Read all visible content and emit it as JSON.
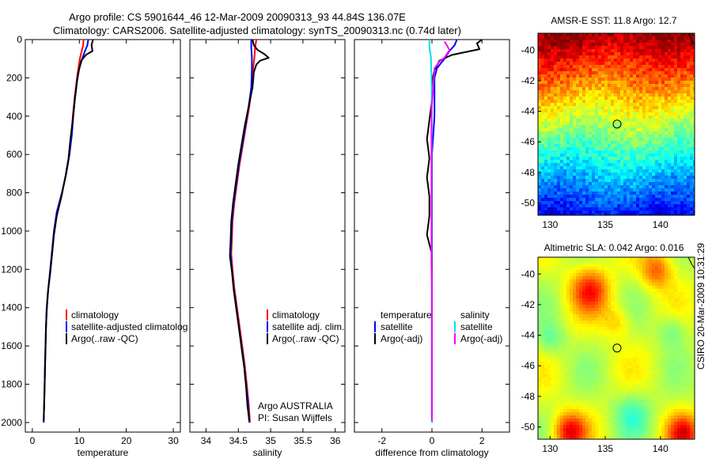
{
  "header": {
    "line1": "Argo profile: CS 5901644_46 12-Mar-2009 20090313_93 44.84S 136.07E",
    "line2": "Climatology: CARS2006. Satellite-adjusted climatology: synTS_20090313.nc (0.74d later)"
  },
  "side_label": "CSIRO 20-Mar-2009 10:31:29",
  "colors": {
    "climatology": "#ff0000",
    "satellite": "#0000ff",
    "argo": "#000000",
    "salinity_satellite": "#00e0e0",
    "salinity_argo": "#ff00ff"
  },
  "chart_data": [
    {
      "id": "temperature",
      "type": "line",
      "xlabel": "temperature",
      "xlim": [
        -1.5,
        31.5
      ],
      "xticks": [
        0,
        10,
        20,
        30
      ],
      "ylim": [
        2050,
        0
      ],
      "yticks": [
        0,
        200,
        400,
        600,
        800,
        1000,
        1200,
        1400,
        1600,
        1800,
        2000
      ],
      "ylabel": "",
      "legend": {
        "position": "lower-middle",
        "entries": [
          "climatology",
          "satellite-adjusted climatolog",
          "Argo(..raw -QC)"
        ]
      },
      "series": [
        {
          "name": "climatology",
          "color_key": "climatology",
          "points": [
            [
              10.9,
              0
            ],
            [
              10.8,
              30
            ],
            [
              10.5,
              60
            ],
            [
              10.1,
              100
            ],
            [
              9.8,
              150
            ],
            [
              9.5,
              200
            ],
            [
              9.0,
              300
            ],
            [
              8.6,
              400
            ],
            [
              8.3,
              500
            ],
            [
              7.9,
              600
            ],
            [
              7.2,
              700
            ],
            [
              6.3,
              800
            ],
            [
              5.2,
              900
            ],
            [
              4.6,
              1000
            ],
            [
              4.2,
              1100
            ],
            [
              3.8,
              1200
            ],
            [
              3.4,
              1300
            ],
            [
              3.1,
              1400
            ],
            [
              2.9,
              1500
            ],
            [
              2.8,
              1600
            ],
            [
              2.7,
              1700
            ],
            [
              2.6,
              1800
            ],
            [
              2.5,
              1900
            ],
            [
              2.4,
              2000
            ]
          ]
        },
        {
          "name": "satellite-adjusted climatology",
          "color_key": "satellite",
          "points": [
            [
              11.9,
              0
            ],
            [
              11.7,
              30
            ],
            [
              11.2,
              60
            ],
            [
              10.6,
              100
            ],
            [
              10.0,
              150
            ],
            [
              9.6,
              200
            ],
            [
              9.1,
              300
            ],
            [
              8.7,
              400
            ],
            [
              8.4,
              500
            ],
            [
              7.9,
              600
            ],
            [
              7.2,
              700
            ],
            [
              6.3,
              800
            ],
            [
              5.2,
              900
            ],
            [
              4.6,
              1000
            ],
            [
              4.2,
              1100
            ],
            [
              3.8,
              1200
            ],
            [
              3.4,
              1300
            ],
            [
              3.1,
              1400
            ],
            [
              2.9,
              1500
            ],
            [
              2.8,
              1600
            ],
            [
              2.7,
              1700
            ],
            [
              2.6,
              1800
            ],
            [
              2.5,
              1900
            ],
            [
              2.4,
              2000
            ]
          ]
        },
        {
          "name": "Argo(..raw -QC)",
          "color_key": "argo",
          "points": [
            [
              12.9,
              0
            ],
            [
              12.6,
              30
            ],
            [
              12.8,
              60
            ],
            [
              11.4,
              80
            ],
            [
              10.4,
              110
            ],
            [
              9.9,
              160
            ],
            [
              9.5,
              220
            ],
            [
              9.0,
              320
            ],
            [
              8.6,
              420
            ],
            [
              8.1,
              520
            ],
            [
              7.7,
              620
            ],
            [
              7.0,
              720
            ],
            [
              6.2,
              820
            ],
            [
              5.2,
              920
            ],
            [
              4.6,
              1020
            ],
            [
              4.2,
              1120
            ],
            [
              3.8,
              1220
            ],
            [
              3.3,
              1320
            ],
            [
              3.0,
              1420
            ],
            [
              2.9,
              1520
            ],
            [
              2.8,
              1620
            ],
            [
              2.7,
              1720
            ],
            [
              2.6,
              1820
            ],
            [
              2.5,
              1920
            ],
            [
              2.4,
              1990
            ]
          ]
        }
      ]
    },
    {
      "id": "salinity",
      "type": "line",
      "xlabel": "salinity",
      "xlim": [
        33.75,
        36.15
      ],
      "xticks": [
        34,
        34.5,
        35,
        35.5,
        36
      ],
      "ylim": [
        2050,
        0
      ],
      "legend": {
        "position": "lower-middle",
        "entries": [
          "climatology",
          "satellite adj. clim.",
          "Argo(..raw -QC)"
        ]
      },
      "annotation": {
        "line1": "Argo AUSTRALIA",
        "line2": "PI: Susan Wijffels"
      },
      "series": [
        {
          "name": "climatology",
          "color_key": "climatology",
          "points": [
            [
              34.78,
              0
            ],
            [
              34.76,
              40
            ],
            [
              34.75,
              90
            ],
            [
              34.73,
              150
            ],
            [
              34.71,
              250
            ],
            [
              34.67,
              350
            ],
            [
              34.62,
              450
            ],
            [
              34.57,
              550
            ],
            [
              34.52,
              650
            ],
            [
              34.48,
              750
            ],
            [
              34.44,
              850
            ],
            [
              34.41,
              950
            ],
            [
              34.4,
              1050
            ],
            [
              34.39,
              1120
            ],
            [
              34.41,
              1200
            ],
            [
              34.44,
              1300
            ],
            [
              34.48,
              1400
            ],
            [
              34.52,
              1500
            ],
            [
              34.56,
              1600
            ],
            [
              34.6,
              1700
            ],
            [
              34.63,
              1800
            ],
            [
              34.66,
              1900
            ],
            [
              34.68,
              2000
            ]
          ]
        },
        {
          "name": "satellite adj. clim.",
          "color_key": "satellite",
          "points": [
            [
              34.7,
              0
            ],
            [
              34.7,
              40
            ],
            [
              34.71,
              90
            ],
            [
              34.71,
              150
            ],
            [
              34.7,
              250
            ],
            [
              34.66,
              350
            ],
            [
              34.61,
              450
            ],
            [
              34.56,
              550
            ],
            [
              34.51,
              650
            ],
            [
              34.47,
              750
            ],
            [
              34.43,
              850
            ],
            [
              34.4,
              950
            ],
            [
              34.39,
              1050
            ],
            [
              34.38,
              1120
            ],
            [
              34.4,
              1200
            ],
            [
              34.43,
              1300
            ],
            [
              34.47,
              1400
            ],
            [
              34.51,
              1500
            ],
            [
              34.55,
              1600
            ],
            [
              34.59,
              1700
            ],
            [
              34.62,
              1800
            ],
            [
              34.65,
              1900
            ],
            [
              34.67,
              2000
            ]
          ]
        },
        {
          "name": "Argo(..raw -QC)",
          "color_key": "argo",
          "points": [
            [
              34.72,
              0
            ],
            [
              34.74,
              30
            ],
            [
              34.8,
              55
            ],
            [
              34.9,
              75
            ],
            [
              34.97,
              95
            ],
            [
              34.84,
              110
            ],
            [
              34.78,
              130
            ],
            [
              34.74,
              170
            ],
            [
              34.72,
              250
            ],
            [
              34.66,
              350
            ],
            [
              34.6,
              450
            ],
            [
              34.55,
              550
            ],
            [
              34.5,
              650
            ],
            [
              34.46,
              750
            ],
            [
              34.42,
              850
            ],
            [
              34.39,
              950
            ],
            [
              34.38,
              1050
            ],
            [
              34.37,
              1130
            ],
            [
              34.4,
              1210
            ],
            [
              34.43,
              1310
            ],
            [
              34.47,
              1410
            ],
            [
              34.51,
              1510
            ],
            [
              34.55,
              1610
            ],
            [
              34.59,
              1710
            ],
            [
              34.62,
              1810
            ],
            [
              34.64,
              1910
            ],
            [
              34.67,
              1990
            ]
          ]
        }
      ]
    },
    {
      "id": "difference",
      "type": "line",
      "xlabel": "difference from climatology",
      "xlim": [
        -3.1,
        3.1
      ],
      "xticks": [
        -2,
        0,
        2
      ],
      "ylim": [
        2050,
        0
      ],
      "legend": {
        "position": "lower-middle",
        "columns": [
          {
            "title": "temperature",
            "entries": [
              "satellite",
              "Argo(-adj)"
            ]
          },
          {
            "title": "salinity",
            "entries": [
              "satellite",
              "Argo(-adj)"
            ]
          }
        ]
      },
      "series": [
        {
          "name": "temperature satellite",
          "color_key": "satellite",
          "points": [
            [
              1.0,
              0
            ],
            [
              0.9,
              30
            ],
            [
              0.7,
              60
            ],
            [
              0.5,
              100
            ],
            [
              0.2,
              150
            ],
            [
              0.1,
              200
            ],
            [
              0.1,
              300
            ],
            [
              0.1,
              400
            ],
            [
              0.05,
              500
            ],
            [
              0.0,
              600
            ],
            [
              0.0,
              800
            ],
            [
              0.0,
              1000
            ],
            [
              0.0,
              1200
            ],
            [
              0.0,
              1400
            ],
            [
              0.0,
              1600
            ],
            [
              0.0,
              1800
            ],
            [
              0.0,
              2000
            ]
          ]
        },
        {
          "name": "temperature Argo(-adj)",
          "color_key": "argo",
          "points": [
            [
              2.0,
              0
            ],
            [
              1.8,
              20
            ],
            [
              1.9,
              50
            ],
            [
              0.8,
              80
            ],
            [
              0.3,
              110
            ],
            [
              0.1,
              160
            ],
            [
              0.0,
              220
            ],
            [
              0.0,
              320
            ],
            [
              -0.1,
              420
            ],
            [
              -0.2,
              520
            ],
            [
              -0.1,
              620
            ],
            [
              -0.2,
              720
            ],
            [
              -0.1,
              820
            ],
            [
              -0.1,
              920
            ],
            [
              -0.2,
              1020
            ],
            [
              0.0,
              1120
            ],
            [
              0.0,
              1220
            ],
            [
              0.0,
              1400
            ],
            [
              0.0,
              1600
            ],
            [
              0.0,
              1800
            ],
            [
              0.0,
              1990
            ]
          ]
        },
        {
          "name": "salinity satellite",
          "color_key": "salinity_satellite",
          "points": [
            [
              -0.1,
              0
            ],
            [
              -0.1,
              40
            ],
            [
              -0.04,
              90
            ],
            [
              -0.03,
              150
            ],
            [
              -0.01,
              250
            ],
            [
              -0.01,
              350
            ],
            [
              -0.01,
              450
            ],
            [
              -0.01,
              550
            ],
            [
              -0.01,
              800
            ],
            [
              -0.01,
              1000
            ],
            [
              -0.01,
              1200
            ],
            [
              -0.01,
              1400
            ],
            [
              -0.01,
              1600
            ],
            [
              -0.01,
              1800
            ],
            [
              -0.01,
              2000
            ]
          ]
        },
        {
          "name": "salinity Argo(-adj)",
          "color_key": "salinity_argo",
          "points": [
            [
              0.5,
              10
            ],
            [
              0.6,
              30
            ],
            [
              0.7,
              55
            ],
            [
              0.6,
              75
            ],
            [
              0.5,
              95
            ],
            [
              0.3,
              115
            ],
            [
              0.1,
              150
            ],
            [
              0.05,
              250
            ],
            [
              -0.01,
              350
            ],
            [
              -0.02,
              450
            ],
            [
              -0.02,
              550
            ],
            [
              -0.02,
              650
            ],
            [
              -0.02,
              750
            ],
            [
              -0.02,
              850
            ],
            [
              -0.02,
              950
            ],
            [
              -0.02,
              1050
            ],
            [
              -0.02,
              1150
            ],
            [
              0.0,
              1300
            ],
            [
              0.0,
              1500
            ],
            [
              0.0,
              1700
            ],
            [
              0.0,
              1900
            ],
            [
              0.0,
              1990
            ]
          ]
        }
      ]
    },
    {
      "id": "sst-map",
      "type": "heatmap",
      "title": "AMSR-E SST: 11.8 Argo: 12.7",
      "xlim": [
        128.9,
        143.1
      ],
      "ylim": [
        -50.8,
        -38.9
      ],
      "xticks": [
        130,
        135,
        140
      ],
      "yticks": [
        -40,
        -42,
        -44,
        -46,
        -48,
        -50
      ],
      "marker": {
        "lon": 136.07,
        "lat": -44.84
      },
      "pattern": "warm (red) north, cooling southward to blue near -50"
    },
    {
      "id": "sla-map",
      "type": "heatmap",
      "title": "Altimetric SLA: 0.042 Argo: 0.016",
      "xlim": [
        128.9,
        143.1
      ],
      "ylim": [
        -50.8,
        -38.9
      ],
      "xticks": [
        130,
        135,
        140
      ],
      "yticks": [
        -40,
        -42,
        -44,
        -46,
        -48,
        -50
      ],
      "marker": {
        "lon": 136.07,
        "lat": -44.84
      },
      "pattern": "mostly yellow-green, orange eddies, red corners at south"
    }
  ]
}
